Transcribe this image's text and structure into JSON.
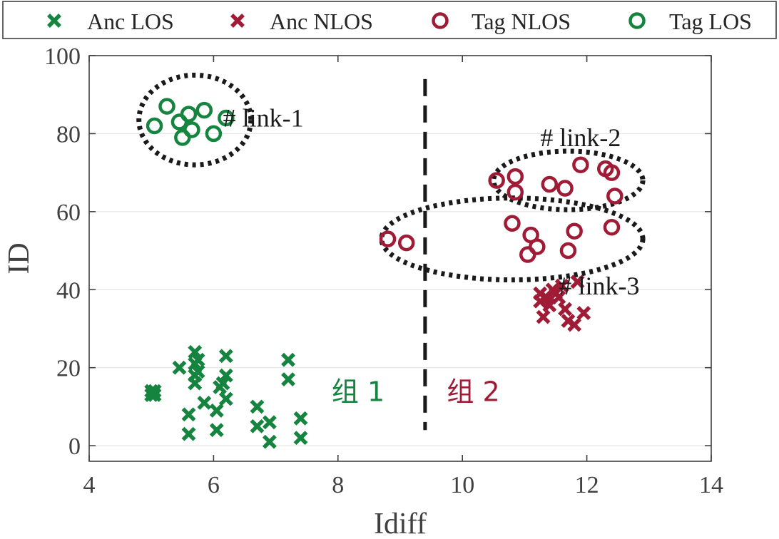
{
  "chart_data": {
    "type": "scatter",
    "xlabel": "Idiff",
    "ylabel": "ID",
    "xlim": [
      4,
      14
    ],
    "ylim": [
      -4,
      100
    ],
    "xticks": [
      4,
      6,
      8,
      10,
      12,
      14
    ],
    "yticks": [
      0,
      20,
      40,
      60,
      80,
      100
    ],
    "grid": true,
    "legend_position": "top",
    "colors": {
      "green": "#14843f",
      "red": "#a01b35",
      "annotation": "#1a1a1a",
      "axis": "#404040"
    },
    "series": [
      {
        "name": "Anc LOS",
        "marker": "x",
        "color": "#14843f",
        "points": [
          [
            5.0,
            14
          ],
          [
            5.0,
            13
          ],
          [
            5.05,
            14
          ],
          [
            5.05,
            13
          ],
          [
            5.45,
            20
          ],
          [
            5.6,
            8
          ],
          [
            5.6,
            3
          ],
          [
            5.7,
            24
          ],
          [
            5.7,
            21
          ],
          [
            5.7,
            18
          ],
          [
            5.7,
            16
          ],
          [
            5.75,
            22
          ],
          [
            5.75,
            19
          ],
          [
            5.85,
            11
          ],
          [
            6.05,
            9
          ],
          [
            6.05,
            4
          ],
          [
            6.1,
            15
          ],
          [
            6.15,
            16
          ],
          [
            6.2,
            23
          ],
          [
            6.2,
            18
          ],
          [
            6.2,
            12
          ],
          [
            6.7,
            10
          ],
          [
            6.7,
            5
          ],
          [
            6.9,
            6
          ],
          [
            6.9,
            1
          ],
          [
            7.2,
            22
          ],
          [
            7.2,
            17
          ],
          [
            7.4,
            7
          ],
          [
            7.4,
            2
          ]
        ]
      },
      {
        "name": "Anc NLOS",
        "marker": "x",
        "color": "#a01b35",
        "points": [
          [
            11.25,
            39
          ],
          [
            11.25,
            37
          ],
          [
            11.3,
            33
          ],
          [
            11.35,
            38
          ],
          [
            11.4,
            36
          ],
          [
            11.45,
            40
          ],
          [
            11.5,
            39
          ],
          [
            11.55,
            38
          ],
          [
            11.6,
            41
          ],
          [
            11.65,
            35
          ],
          [
            11.7,
            32
          ],
          [
            11.8,
            31
          ],
          [
            11.85,
            42
          ],
          [
            11.95,
            34
          ]
        ]
      },
      {
        "name": "Tag NLOS",
        "marker": "o",
        "color": "#a01b35",
        "points": [
          [
            8.8,
            53
          ],
          [
            9.1,
            52
          ],
          [
            10.55,
            68
          ],
          [
            10.8,
            57
          ],
          [
            10.85,
            69
          ],
          [
            10.85,
            65
          ],
          [
            11.05,
            49
          ],
          [
            11.1,
            54
          ],
          [
            11.2,
            51
          ],
          [
            11.4,
            67
          ],
          [
            11.65,
            66
          ],
          [
            11.7,
            50
          ],
          [
            11.8,
            55
          ],
          [
            11.9,
            72
          ],
          [
            12.3,
            71
          ],
          [
            12.4,
            56
          ],
          [
            12.4,
            70
          ],
          [
            12.45,
            64
          ]
        ]
      },
      {
        "name": "Tag LOS",
        "marker": "o",
        "color": "#14843f",
        "points": [
          [
            5.05,
            82
          ],
          [
            5.25,
            87
          ],
          [
            5.45,
            83
          ],
          [
            5.5,
            79
          ],
          [
            5.6,
            85
          ],
          [
            5.65,
            81
          ],
          [
            5.85,
            86
          ],
          [
            6.0,
            80
          ],
          [
            6.2,
            84
          ]
        ]
      }
    ],
    "annotations": [
      {
        "text": "# link-1",
        "x": 6.8,
        "y": 84
      },
      {
        "text": "# link-2",
        "x": 11.9,
        "y": 79
      },
      {
        "text": "# link-3",
        "x": 12.2,
        "y": 41
      }
    ],
    "group_labels": [
      {
        "text": "组 1",
        "x": 8.75,
        "y": 14,
        "color": "#14843f"
      },
      {
        "text": "组 2",
        "x": 9.75,
        "y": 14,
        "color": "#a01b35"
      }
    ],
    "divider_x": 9.4,
    "clusters": [
      {
        "cx": 5.7,
        "cy": 83.5,
        "rx": 0.9,
        "ry": 11.5
      },
      {
        "cx": 11.7,
        "cy": 68,
        "rx": 1.2,
        "ry": 7.5
      },
      {
        "cx": 10.8,
        "cy": 53,
        "rx": 2.1,
        "ry": 10.5
      }
    ]
  }
}
